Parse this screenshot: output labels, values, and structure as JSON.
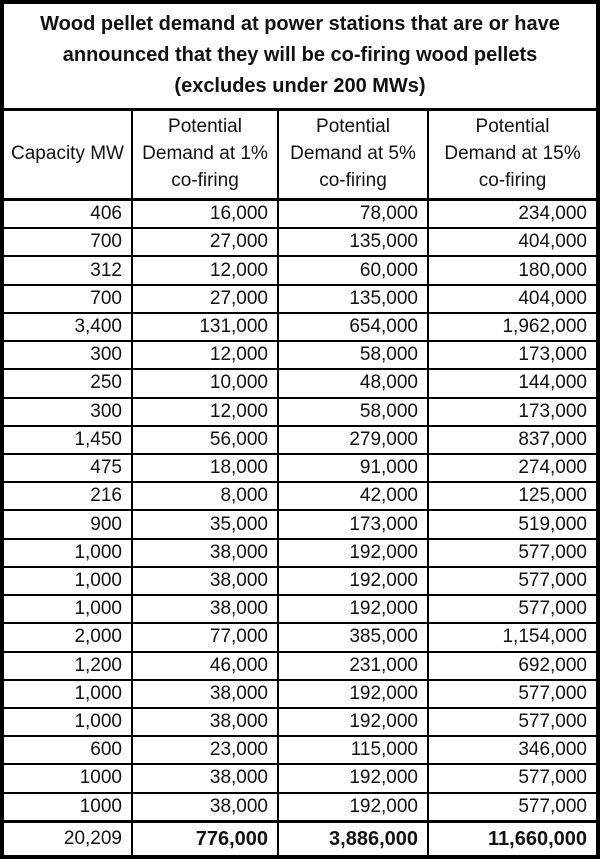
{
  "title_text": "Wood pellet demand at power stations that are or have\nannounced that they will be co-firing wood pellets\n(excludes under 200 MWs)",
  "colors": {
    "border": "#000000",
    "background": "#ffffff",
    "text": "#111111"
  },
  "table": {
    "headers": [
      "Capacity MW",
      "Potential\nDemand at 1%\nco-firing",
      "Potential\nDemand at 5%\nco-firing",
      "Potential\nDemand at 15%\nco-firing"
    ],
    "rows": [
      [
        "406",
        "16,000",
        "78,000",
        "234,000"
      ],
      [
        "700",
        "27,000",
        "135,000",
        "404,000"
      ],
      [
        "312",
        "12,000",
        "60,000",
        "180,000"
      ],
      [
        "700",
        "27,000",
        "135,000",
        "404,000"
      ],
      [
        "3,400",
        "131,000",
        "654,000",
        "1,962,000"
      ],
      [
        "300",
        "12,000",
        "58,000",
        "173,000"
      ],
      [
        "250",
        "10,000",
        "48,000",
        "144,000"
      ],
      [
        "300",
        "12,000",
        "58,000",
        "173,000"
      ],
      [
        "1,450",
        "56,000",
        "279,000",
        "837,000"
      ],
      [
        "475",
        "18,000",
        "91,000",
        "274,000"
      ],
      [
        "216",
        "8,000",
        "42,000",
        "125,000"
      ],
      [
        "900",
        "35,000",
        "173,000",
        "519,000"
      ],
      [
        "1,000",
        "38,000",
        "192,000",
        "577,000"
      ],
      [
        "1,000",
        "38,000",
        "192,000",
        "577,000"
      ],
      [
        "1,000",
        "38,000",
        "192,000",
        "577,000"
      ],
      [
        "2,000",
        "77,000",
        "385,000",
        "1,154,000"
      ],
      [
        "1,200",
        "46,000",
        "231,000",
        "692,000"
      ],
      [
        "1,000",
        "38,000",
        "192,000",
        "577,000"
      ],
      [
        "1,000",
        "38,000",
        "192,000",
        "577,000"
      ],
      [
        "600",
        "23,000",
        "115,000",
        "346,000"
      ],
      [
        "1000",
        "38,000",
        "192,000",
        "577,000"
      ],
      [
        "1000",
        "38,000",
        "192,000",
        "577,000"
      ]
    ],
    "total_row": [
      "20,209",
      "776,000",
      "3,886,000",
      "11,660,000"
    ]
  },
  "chart_data": {
    "type": "table",
    "title": "Wood pellet demand at power stations that are or have announced that they will be co-firing wood pellets (excludes under 200 MWs)",
    "columns": [
      "Capacity MW",
      "Potential Demand at 1% co-firing",
      "Potential Demand at 5% co-firing",
      "Potential Demand at 15% co-firing"
    ],
    "rows": [
      [
        406,
        16000,
        78000,
        234000
      ],
      [
        700,
        27000,
        135000,
        404000
      ],
      [
        312,
        12000,
        60000,
        180000
      ],
      [
        700,
        27000,
        135000,
        404000
      ],
      [
        3400,
        131000,
        654000,
        1962000
      ],
      [
        300,
        12000,
        58000,
        173000
      ],
      [
        250,
        10000,
        48000,
        144000
      ],
      [
        300,
        12000,
        58000,
        173000
      ],
      [
        1450,
        56000,
        279000,
        837000
      ],
      [
        475,
        18000,
        91000,
        274000
      ],
      [
        216,
        8000,
        42000,
        125000
      ],
      [
        900,
        35000,
        173000,
        519000
      ],
      [
        1000,
        38000,
        192000,
        577000
      ],
      [
        1000,
        38000,
        192000,
        577000
      ],
      [
        1000,
        38000,
        192000,
        577000
      ],
      [
        2000,
        77000,
        385000,
        1154000
      ],
      [
        1200,
        46000,
        231000,
        692000
      ],
      [
        1000,
        38000,
        192000,
        577000
      ],
      [
        1000,
        38000,
        192000,
        577000
      ],
      [
        600,
        23000,
        115000,
        346000
      ],
      [
        1000,
        38000,
        192000,
        577000
      ],
      [
        1000,
        38000,
        192000,
        577000
      ]
    ],
    "totals": [
      20209,
      776000,
      3886000,
      11660000
    ]
  }
}
